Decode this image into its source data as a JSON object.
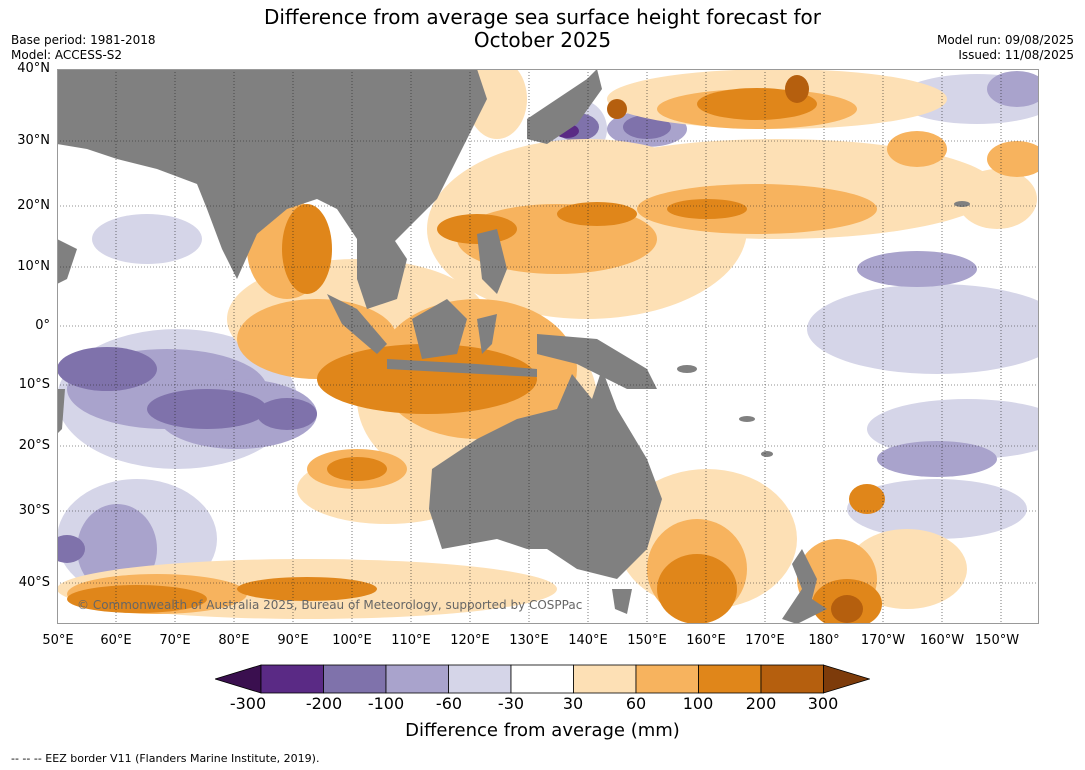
{
  "title_line1": "Difference from average sea surface height forecast for",
  "title_line2": "October 2025",
  "base_period": "Base period: 1981-2018",
  "model": "Model: ACCESS-S2",
  "model_run": "Model run: 09/08/2025",
  "issued": "Issued: 11/08/2025",
  "copyright": "© Commonwealth of Australia 2025, Bureau of Meteorology, supported by COSPPac",
  "footnote": "--  --  -- EEZ border V11 (Flanders Marine Institute, 2019).",
  "colorbar": {
    "title": "Difference from average (mm)",
    "ticks": [
      "-300",
      "-200",
      "-100",
      "-60",
      "-30",
      "30",
      "60",
      "100",
      "200",
      "300"
    ],
    "colors": {
      "under": "#3a0f4f",
      "bins": [
        "#5a2a85",
        "#7f72ab",
        "#a9a3cc",
        "#d5d5e8",
        "#ffffff",
        "#fde0b5",
        "#f7b35e",
        "#e0861a",
        "#b55f0e"
      ],
      "over": "#7d3b0a"
    }
  },
  "land_color": "#808080",
  "lat_labels": [
    "40°N",
    "30°N",
    "20°N",
    "10°N",
    "0°",
    "10°S",
    "20°S",
    "30°S",
    "40°S"
  ],
  "lon_labels": [
    "50°E",
    "60°E",
    "70°E",
    "80°E",
    "90°E",
    "100°E",
    "110°E",
    "120°E",
    "130°E",
    "140°E",
    "150°E",
    "160°E",
    "170°E",
    "180°",
    "170°W",
    "160°W",
    "150°W"
  ]
}
